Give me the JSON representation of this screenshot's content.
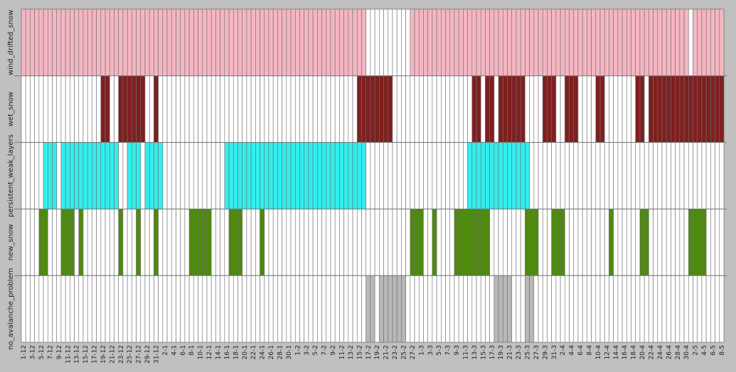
{
  "chart_data": {
    "type": "heatmap",
    "title": "",
    "xlabel": "",
    "ylabel": "",
    "grid": true,
    "legend": "none",
    "categories": [
      "1-12",
      "2-12",
      "3-12",
      "4-12",
      "5-12",
      "6-12",
      "7-12",
      "8-12",
      "9-12",
      "10-12",
      "11-12",
      "12-12",
      "13-12",
      "14-12",
      "15-12",
      "16-12",
      "17-12",
      "18-12",
      "19-12",
      "20-12",
      "21-12",
      "22-12",
      "23-12",
      "24-12",
      "25-12",
      "26-12",
      "27-12",
      "28-12",
      "29-12",
      "30-12",
      "31-12",
      "1-1",
      "2-1",
      "3-1",
      "4-1",
      "5-1",
      "6-1",
      "7-1",
      "8-1",
      "9-1",
      "10-1",
      "11-1",
      "12-1",
      "13-1",
      "14-1",
      "15-1",
      "16-1",
      "17-1",
      "18-1",
      "19-1",
      "20-1",
      "21-1",
      "22-1",
      "23-1",
      "24-1",
      "25-1",
      "26-1",
      "27-1",
      "28-1",
      "29-1",
      "30-1",
      "31-1",
      "1-2",
      "2-2",
      "3-2",
      "4-2",
      "5-2",
      "6-2",
      "7-2",
      "8-2",
      "9-2",
      "10-2",
      "11-2",
      "12-2",
      "13-2",
      "14-2",
      "15-2",
      "16-2",
      "17-2",
      "18-2",
      "19-2",
      "20-2",
      "21-2",
      "22-2",
      "23-2",
      "24-2",
      "25-2",
      "26-2",
      "27-2",
      "28-2",
      "1-3",
      "2-3",
      "3-3",
      "4-3",
      "5-3",
      "6-3",
      "7-3",
      "8-3",
      "9-3",
      "10-3",
      "11-3",
      "12-3",
      "13-3",
      "14-3",
      "15-3",
      "16-3",
      "17-3",
      "18-3",
      "19-3",
      "20-3",
      "21-3",
      "22-3",
      "23-3",
      "24-3",
      "25-3",
      "26-3",
      "27-3",
      "28-3",
      "29-3",
      "30-3",
      "31-3",
      "1-4",
      "2-4",
      "3-4",
      "4-4",
      "5-4",
      "6-4",
      "7-4",
      "8-4",
      "9-4",
      "10-4",
      "11-4",
      "12-4",
      "13-4",
      "14-4",
      "15-4",
      "16-4",
      "17-4",
      "18-4",
      "19-4",
      "20-4",
      "21-4",
      "22-4",
      "23-4",
      "24-4",
      "25-4",
      "26-4",
      "27-4",
      "28-4",
      "29-4",
      "30-4",
      "1-5",
      "2-5",
      "3-5",
      "4-5",
      "5-5",
      "6-5",
      "7-5",
      "8-5"
    ],
    "tick_labels": [
      "1-12",
      "3-12",
      "5-12",
      "7-12",
      "9-12",
      "11-12",
      "13-12",
      "15-12",
      "17-12",
      "19-12",
      "21-12",
      "23-12",
      "25-12",
      "27-12",
      "29-12",
      "31-12",
      "2-1",
      "4-1",
      "6-1",
      "8-1",
      "10-1",
      "12-1",
      "14-1",
      "16-1",
      "18-1",
      "20-1",
      "22-1",
      "24-1",
      "26-1",
      "28-1",
      "30-1",
      "1-2",
      "3-2",
      "5-2",
      "7-2",
      "9-2",
      "11-2",
      "13-2",
      "15-2",
      "17-2",
      "19-2",
      "21-2",
      "23-2",
      "25-2",
      "27-2",
      "1-3",
      "3-3",
      "5-3",
      "7-3",
      "9-3",
      "11-3",
      "13-3",
      "15-3",
      "17-3",
      "19-3",
      "21-3",
      "23-3",
      "25-3",
      "27-3",
      "29-3",
      "31-3",
      "2-4",
      "4-4",
      "6-4",
      "8-4",
      "10-4",
      "12-4",
      "14-4",
      "16-4",
      "18-4",
      "20-4",
      "22-4",
      "24-4",
      "26-4",
      "28-4",
      "30-4",
      "2-5",
      "4-5",
      "6-5",
      "8-5"
    ],
    "series": [
      {
        "name": "wind_drifted_snow",
        "color": "#f4b6c2",
        "active_ranges": [
          [
            "1-12",
            "16-2"
          ],
          [
            "27-2",
            "30-4"
          ],
          [
            "2-5",
            "8-5"
          ]
        ]
      },
      {
        "name": "wet_snow",
        "color": "#7f1f1f",
        "active_ranges": [
          [
            "19-12",
            "20-12"
          ],
          [
            "23-12",
            "28-12"
          ],
          [
            "31-12",
            "31-12"
          ],
          [
            "15-2",
            "22-2"
          ],
          [
            "13-3",
            "14-3"
          ],
          [
            "16-3",
            "17-3"
          ],
          [
            "19-3",
            "24-3"
          ],
          [
            "29-3",
            "31-3"
          ],
          [
            "3-4",
            "5-4"
          ],
          [
            "10-4",
            "11-4"
          ],
          [
            "19-4",
            "20-4"
          ],
          [
            "22-4",
            "8-5"
          ]
        ]
      },
      {
        "name": "persistent_weak_layers",
        "color": "#33eeee",
        "active_ranges": [
          [
            "6-12",
            "8-12"
          ],
          [
            "10-12",
            "22-12"
          ],
          [
            "25-12",
            "27-12"
          ],
          [
            "29-12",
            "1-1"
          ],
          [
            "16-1",
            "16-2"
          ],
          [
            "12-3",
            "25-3"
          ]
        ]
      },
      {
        "name": "new_snow",
        "color": "#4e8a0e",
        "active_ranges": [
          [
            "5-12",
            "6-12"
          ],
          [
            "10-12",
            "12-12"
          ],
          [
            "14-12",
            "14-12"
          ],
          [
            "23-12",
            "23-12"
          ],
          [
            "27-12",
            "27-12"
          ],
          [
            "31-12",
            "31-12"
          ],
          [
            "8-1",
            "12-1"
          ],
          [
            "17-1",
            "19-1"
          ],
          [
            "24-1",
            "24-1"
          ],
          [
            "27-2",
            "1-3"
          ],
          [
            "4-3",
            "4-3"
          ],
          [
            "9-3",
            "16-3"
          ],
          [
            "25-3",
            "27-3"
          ],
          [
            "31-3",
            "2-4"
          ],
          [
            "13-4",
            "13-4"
          ],
          [
            "20-4",
            "21-4"
          ],
          [
            "1-5",
            "4-5"
          ]
        ]
      },
      {
        "name": "no_avalanche_problem",
        "color": "#b8b8b8",
        "active_ranges": [
          [
            "17-2",
            "18-2"
          ],
          [
            "20-2",
            "25-2"
          ],
          [
            "18-3",
            "21-3"
          ],
          [
            "25-3",
            "26-3"
          ]
        ]
      }
    ]
  }
}
